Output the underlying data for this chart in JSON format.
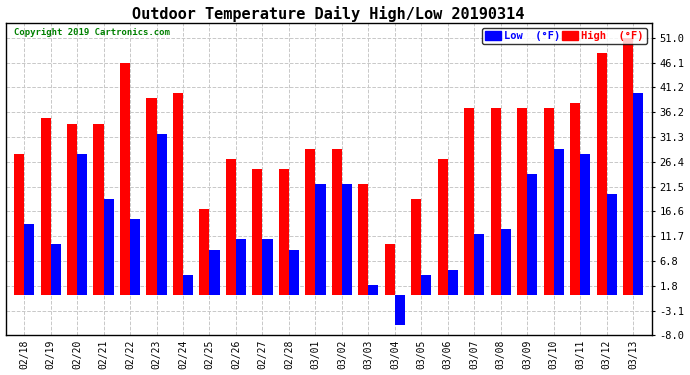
{
  "title": "Outdoor Temperature Daily High/Low 20190314",
  "copyright": "Copyright 2019 Cartronics.com",
  "categories": [
    "02/18",
    "02/19",
    "02/20",
    "02/21",
    "02/22",
    "02/23",
    "02/24",
    "02/25",
    "02/26",
    "02/27",
    "02/28",
    "03/01",
    "03/02",
    "03/03",
    "03/04",
    "03/05",
    "03/06",
    "03/07",
    "03/08",
    "03/09",
    "03/10",
    "03/11",
    "03/12",
    "03/13"
  ],
  "low": [
    14,
    10,
    28,
    19,
    15,
    32,
    4,
    9,
    11,
    11,
    9,
    22,
    22,
    2,
    -6,
    4,
    5,
    12,
    13,
    24,
    29,
    28,
    20,
    40
  ],
  "high": [
    28,
    35,
    34,
    34,
    46,
    39,
    40,
    17,
    27,
    25,
    25,
    29,
    29,
    22,
    10,
    19,
    27,
    37,
    37,
    37,
    37,
    38,
    48,
    51
  ],
  "low_color": "#0000ff",
  "high_color": "#ff0000",
  "bg_color": "#ffffff",
  "grid_color": "#c8c8c8",
  "ylim_min": -8.0,
  "ylim_max": 54.0,
  "yticks": [
    -8.0,
    -3.1,
    1.8,
    6.8,
    11.7,
    16.6,
    21.5,
    26.4,
    31.3,
    36.2,
    41.2,
    46.1,
    51.0
  ],
  "title_fontsize": 11,
  "bar_width": 0.38
}
